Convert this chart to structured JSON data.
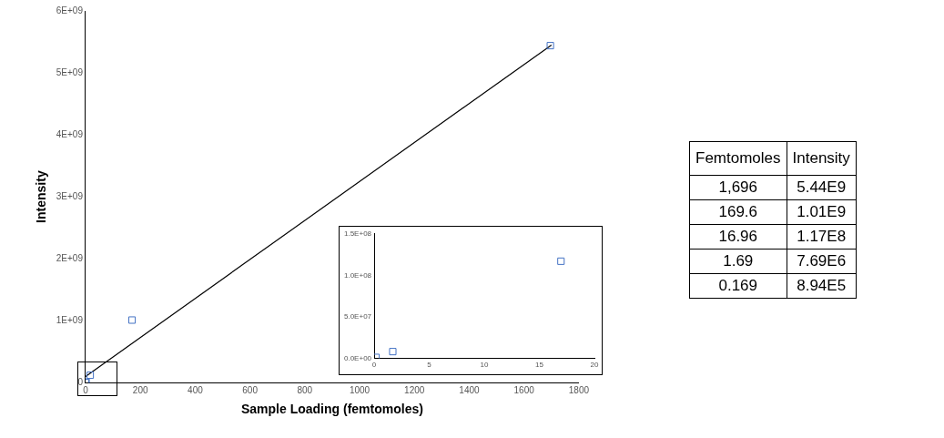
{
  "chart_data": [
    {
      "type": "scatter",
      "xlabel": "Sample Loading (femtomoles)",
      "ylabel": "Intensity",
      "xlim": [
        0,
        1800
      ],
      "xticks": [
        0,
        200,
        400,
        600,
        800,
        1000,
        1200,
        1400,
        1600,
        1800
      ],
      "ylim": [
        0,
        6000000000
      ],
      "yticks": [
        0,
        {
          "value": 1000000000,
          "label": "1E+09"
        },
        {
          "value": 2000000000,
          "label": "2E+09"
        },
        {
          "value": 3000000000,
          "label": "3E+09"
        },
        {
          "value": 4000000000,
          "label": "4E+09"
        },
        {
          "value": 5000000000,
          "label": "5E+09"
        },
        {
          "value": 6000000000,
          "label": "6E+09"
        }
      ],
      "grid": false,
      "legend": false,
      "series": [
        {
          "type": "scatter",
          "color": "#4472c4",
          "marker": "square",
          "x": [
            1696,
            169.6,
            16.96,
            1.69,
            0.169
          ],
          "values": [
            5440000000,
            1010000000,
            120000000,
            8000000,
            1000000
          ]
        },
        {
          "type": "line",
          "color": "#000000",
          "marker": "none",
          "x": [
            0,
            1700
          ],
          "values": [
            100000000,
            5450000000
          ]
        }
      ]
    },
    {
      "type": "scatter",
      "xlim": [
        0,
        20
      ],
      "xticks": [
        0,
        5,
        10,
        15,
        20
      ],
      "ylim": [
        0,
        150000000
      ],
      "yticks": [
        {
          "value": 0,
          "label": "0.0E+00"
        },
        {
          "value": 50000000,
          "label": "5.0E+07"
        },
        {
          "value": 100000000,
          "label": "1.0E+08"
        },
        {
          "value": 150000000,
          "label": "1.5E+08"
        }
      ],
      "grid": false,
      "legend": false,
      "marker": "square",
      "series": [
        {
          "type": "scatter",
          "color": "#4472c4",
          "x": [
            16.96,
            1.69,
            0.169
          ],
          "values": [
            117000000,
            8000000,
            1000000
          ]
        }
      ]
    },
    {
      "type": "other",
      "categories": [
        "Femtomoles",
        "Intensity"
      ],
      "cell_labels": [
        [
          "1,696",
          "5.44E9"
        ],
        [
          "169.6",
          "1.01E9"
        ],
        [
          "16.96",
          "1.17E8"
        ],
        [
          "1.69",
          "7.69E6"
        ],
        [
          "0.169",
          "8.94E5"
        ]
      ]
    }
  ]
}
